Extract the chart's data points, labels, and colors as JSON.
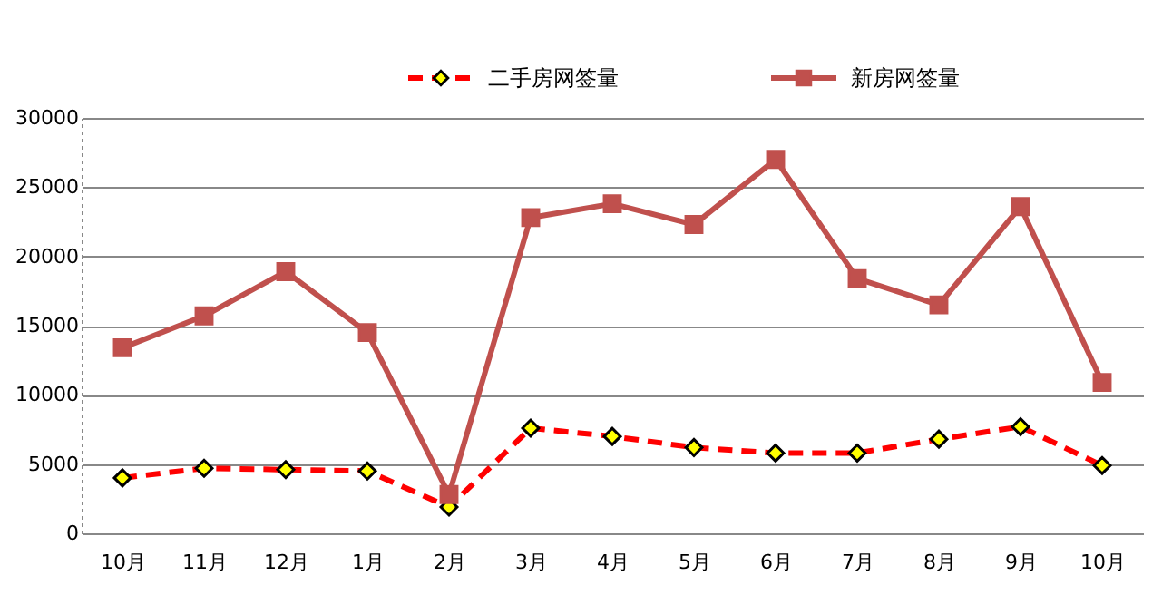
{
  "chart_data": {
    "type": "line",
    "categories": [
      "10月",
      "11月",
      "12月",
      "1月",
      "2月",
      "3月",
      "4月",
      "5月",
      "6月",
      "7月",
      "8月",
      "9月",
      "10月"
    ],
    "series": [
      {
        "name": "二手房网签量",
        "color": "#ff0000",
        "marker": "diamond",
        "line_style": "dashed",
        "values": [
          4000,
          4700,
          4600,
          4500,
          1900,
          7600,
          7000,
          6200,
          5800,
          5800,
          6800,
          7700,
          4900
        ]
      },
      {
        "name": "新房网签量",
        "color": "#c0504d",
        "marker": "square",
        "line_style": "solid",
        "values": [
          13400,
          15700,
          18900,
          14500,
          2800,
          22800,
          23800,
          22300,
          27000,
          18400,
          16500,
          23600,
          10900
        ]
      }
    ],
    "ylim": [
      0,
      30000
    ],
    "yticks": [
      0,
      5000,
      10000,
      15000,
      20000,
      25000,
      30000
    ],
    "grid": "y",
    "legend": "top"
  }
}
